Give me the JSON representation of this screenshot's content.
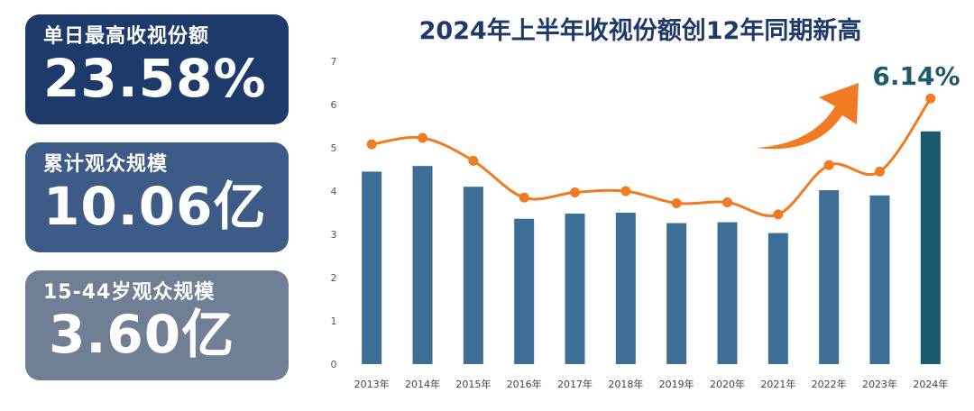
{
  "title": "2024年上半年收视份额创12年同期新高",
  "stats": [
    {
      "label": "单日最高收视份额",
      "value": "23.58%"
    },
    {
      "label": "累计观众规模",
      "value": "10.06亿"
    },
    {
      "label": "15-44岁观众规模",
      "value": "3.60亿"
    }
  ],
  "callout_label": "6.14%",
  "colors": {
    "bar": "#3d6e96",
    "bar_highlight": "#195a6e",
    "line": "#f07b22",
    "card_1": "#1d3a6b",
    "card_2": "#3e5a87",
    "card_3": "#717f95",
    "title": "#1d3a6b"
  },
  "chart_data": {
    "type": "bar+line",
    "title": "2024年上半年收视份额创12年同期新高",
    "categories": [
      "2013年",
      "2014年",
      "2015年",
      "2016年",
      "2017年",
      "2018年",
      "2019年",
      "2020年",
      "2021年",
      "2022年",
      "2023年",
      "2024年"
    ],
    "series": [
      {
        "type": "bar",
        "values": [
          4.45,
          4.58,
          4.1,
          3.36,
          3.48,
          3.5,
          3.26,
          3.28,
          3.03,
          4.02,
          3.9,
          5.38
        ]
      },
      {
        "type": "line",
        "values": [
          5.08,
          5.23,
          4.7,
          3.85,
          3.97,
          4.0,
          3.72,
          3.74,
          3.46,
          4.6,
          4.45,
          6.14
        ]
      }
    ],
    "yticks": [
      "0",
      "1",
      "2",
      "3",
      "4",
      "5",
      "6",
      "7"
    ],
    "ylim": [
      0,
      7
    ],
    "grid": false,
    "highlight_last_bar": true,
    "annotation": "6.14%"
  }
}
